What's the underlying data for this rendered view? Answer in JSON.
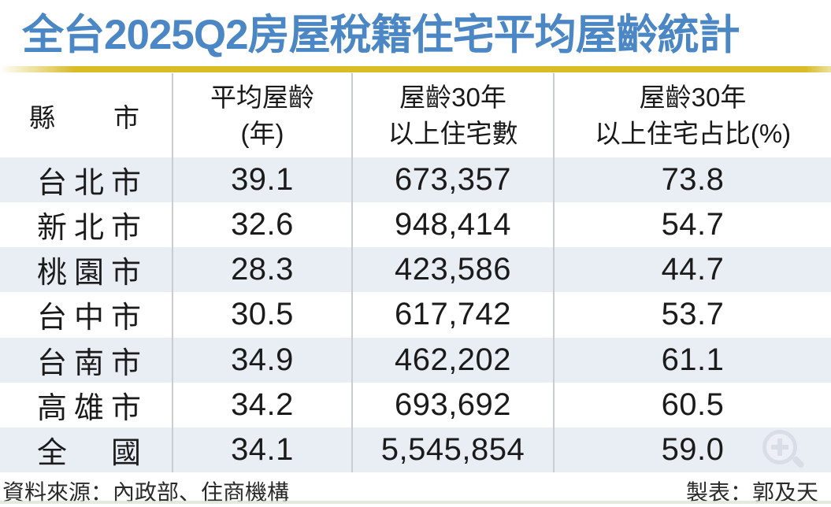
{
  "title": "全台2025Q2房屋稅籍住宅平均屋齡統計",
  "table": {
    "header": {
      "col1_chars": [
        "縣",
        "市"
      ],
      "col2_lines": [
        "平均屋齡",
        "(年)"
      ],
      "col3_lines": [
        "屋齡30年",
        "以上住宅數"
      ],
      "col4_lines": [
        "屋齡30年",
        "以上住宅占比(%)"
      ]
    },
    "rows": [
      {
        "city_chars": [
          "台",
          "北",
          "市"
        ],
        "avg_age": "39.1",
        "over30_count": "673,357",
        "over30_pct": "73.8"
      },
      {
        "city_chars": [
          "新",
          "北",
          "市"
        ],
        "avg_age": "32.6",
        "over30_count": "948,414",
        "over30_pct": "54.7"
      },
      {
        "city_chars": [
          "桃",
          "園",
          "市"
        ],
        "avg_age": "28.3",
        "over30_count": "423,586",
        "over30_pct": "44.7"
      },
      {
        "city_chars": [
          "台",
          "中",
          "市"
        ],
        "avg_age": "30.5",
        "over30_count": "617,742",
        "over30_pct": "53.7"
      },
      {
        "city_chars": [
          "台",
          "南",
          "市"
        ],
        "avg_age": "34.9",
        "over30_count": "462,202",
        "over30_pct": "61.1"
      },
      {
        "city_chars": [
          "高",
          "雄",
          "市"
        ],
        "avg_age": "34.2",
        "over30_count": "693,692",
        "over30_pct": "60.5"
      },
      {
        "city_chars": [
          "全",
          "國"
        ],
        "avg_age": "34.1",
        "over30_count": "5,545,854",
        "over30_pct": "59.0"
      }
    ]
  },
  "footer": {
    "source": "資料來源：內政部、住商機構",
    "credit": "製表：郭及天"
  },
  "colors": {
    "title_blue": "#4c87c5",
    "accent_yellow": "#d8bc28",
    "row_alt_blue": "#e9edf4",
    "divider_gray": "#c9cdd1"
  },
  "chart_data": {
    "type": "table",
    "title": "全台2025Q2房屋稅籍住宅平均屋齡統計",
    "columns": [
      "縣市",
      "平均屋齡(年)",
      "屋齡30年以上住宅數",
      "屋齡30年以上住宅占比(%)"
    ],
    "rows": [
      [
        "台北市",
        39.1,
        673357,
        73.8
      ],
      [
        "新北市",
        32.6,
        948414,
        54.7
      ],
      [
        "桃園市",
        28.3,
        423586,
        44.7
      ],
      [
        "台中市",
        30.5,
        617742,
        53.7
      ],
      [
        "台南市",
        34.9,
        462202,
        61.1
      ],
      [
        "高雄市",
        34.2,
        693692,
        60.5
      ],
      [
        "全國",
        34.1,
        5545854,
        59.0
      ]
    ],
    "source": "資料來源：內政部、住商機構",
    "credit": "製表：郭及天"
  }
}
